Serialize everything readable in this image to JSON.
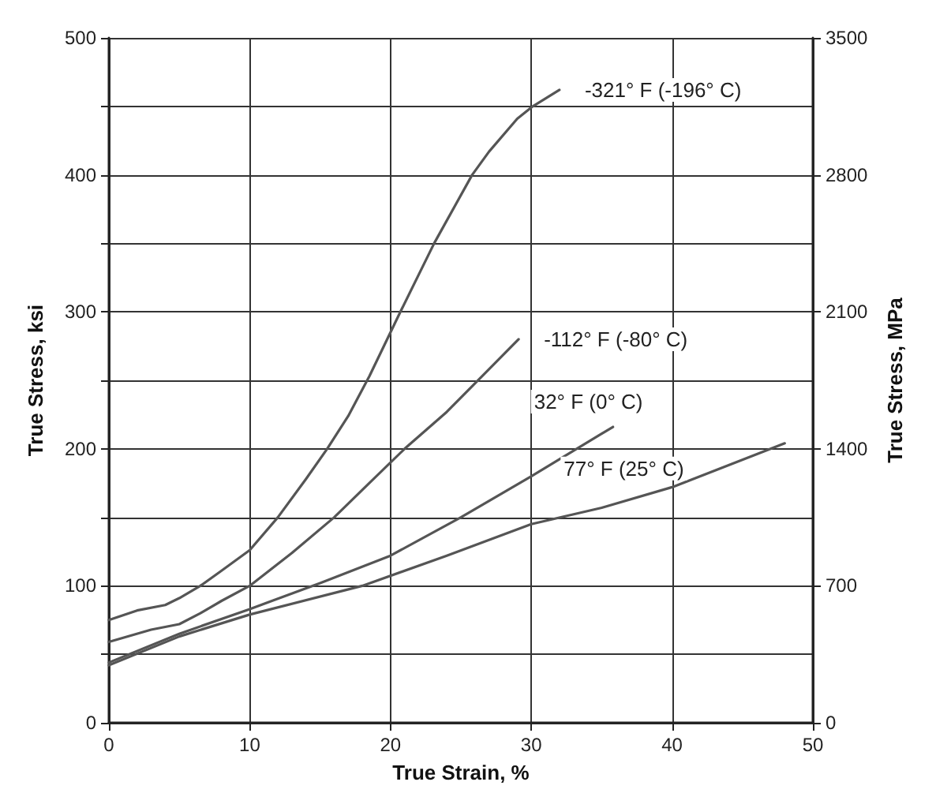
{
  "chart_data": {
    "type": "line",
    "xlabel": "True Strain, %",
    "ylabel": "True Stress, ksi",
    "y2label": "True Stress, MPa",
    "xlim": [
      0,
      50
    ],
    "xticks": [
      0,
      10,
      20,
      30,
      40,
      50
    ],
    "ylim": [
      0,
      500
    ],
    "yticks": [
      0,
      {
        "value": 50,
        "label": null
      },
      100,
      {
        "value": 150,
        "label": null
      },
      200,
      {
        "value": 250,
        "label": null
      },
      300,
      {
        "value": 350,
        "label": null
      },
      400,
      {
        "value": 450,
        "label": null
      },
      500
    ],
    "y2lim": [
      0,
      3500
    ],
    "y2ticks": [
      0,
      700,
      1400,
      2100,
      2800,
      3500
    ],
    "grid": true,
    "marker": "none",
    "line_style": "solid",
    "series": [
      {
        "name": "-321° F (-196° C)",
        "color": "#555555",
        "x": [
          0,
          2,
          4,
          5,
          6.5,
          8,
          10,
          12,
          14,
          15.5,
          17,
          18.5,
          20.7,
          23.1,
          25.8,
          27,
          29,
          30.1,
          32
        ],
        "values": [
          75,
          82,
          86,
          91,
          100,
          111,
          126,
          150,
          178,
          200,
          224,
          253,
          300,
          350,
          400,
          417,
          441,
          450,
          462
        ]
      },
      {
        "name": "-112° F (-80° C)",
        "color": "#555555",
        "x": [
          0,
          3,
          5,
          6.5,
          8,
          10,
          13,
          16,
          18.5,
          21,
          24,
          26.5,
          29.1
        ],
        "values": [
          59,
          68,
          72,
          80,
          89,
          100,
          124,
          150,
          175,
          200,
          227,
          253,
          280
        ]
      },
      {
        "name": "32° F (0° C)",
        "color": "#555555",
        "x": [
          0,
          5,
          10,
          15,
          20,
          25,
          30,
          35.8
        ],
        "values": [
          44,
          65,
          83,
          102,
          122,
          150,
          180,
          216
        ]
      },
      {
        "name": "77° F (25° C)",
        "color": "#555555",
        "x": [
          0,
          5,
          10,
          18,
          24,
          30,
          35,
          40,
          48
        ],
        "values": [
          42,
          63,
          79,
          100,
          122,
          145,
          157,
          172,
          204
        ]
      }
    ]
  }
}
